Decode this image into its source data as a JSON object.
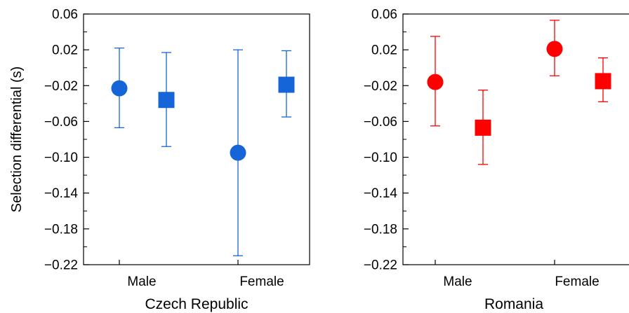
{
  "chart_data": [
    {
      "type": "scatter",
      "panel_title": "Czech Republic",
      "ylabel": "Selection differential (s)",
      "categories": [
        "Male",
        "Female"
      ],
      "ylim": [
        -0.22,
        0.06
      ],
      "yticks": [
        "0.06",
        "0.02",
        "−0.02",
        "−0.06",
        "−0.10",
        "−0.14",
        "−0.18",
        "−0.22"
      ],
      "ytick_values": [
        0.06,
        0.02,
        -0.02,
        -0.06,
        -0.1,
        -0.14,
        -0.18,
        -0.22
      ],
      "color": "#1565d8",
      "series": [
        {
          "marker": "circle",
          "values": [
            -0.023,
            -0.095
          ],
          "lower": [
            -0.067,
            -0.21
          ],
          "upper": [
            0.022,
            0.02
          ]
        },
        {
          "marker": "square",
          "values": [
            -0.036,
            -0.019
          ],
          "lower": [
            -0.088,
            -0.055
          ],
          "upper": [
            0.017,
            0.019
          ]
        }
      ]
    },
    {
      "type": "scatter",
      "panel_title": "Romania",
      "categories": [
        "Male",
        "Female"
      ],
      "ylim": [
        -0.22,
        0.06
      ],
      "yticks": [
        "0.06",
        "0.02",
        "−0.02",
        "−0.06",
        "−0.10",
        "−0.14",
        "−0.18",
        "−0.22"
      ],
      "ytick_values": [
        0.06,
        0.02,
        -0.02,
        -0.06,
        -0.1,
        -0.14,
        -0.18,
        -0.22
      ],
      "color": "#ff0000",
      "series": [
        {
          "marker": "circle",
          "values": [
            -0.016,
            0.021
          ],
          "lower": [
            -0.065,
            -0.009
          ],
          "upper": [
            0.035,
            0.053
          ]
        },
        {
          "marker": "square",
          "values": [
            -0.067,
            -0.015
          ],
          "lower": [
            -0.108,
            -0.038
          ],
          "upper": [
            -0.025,
            0.011
          ]
        }
      ]
    }
  ]
}
